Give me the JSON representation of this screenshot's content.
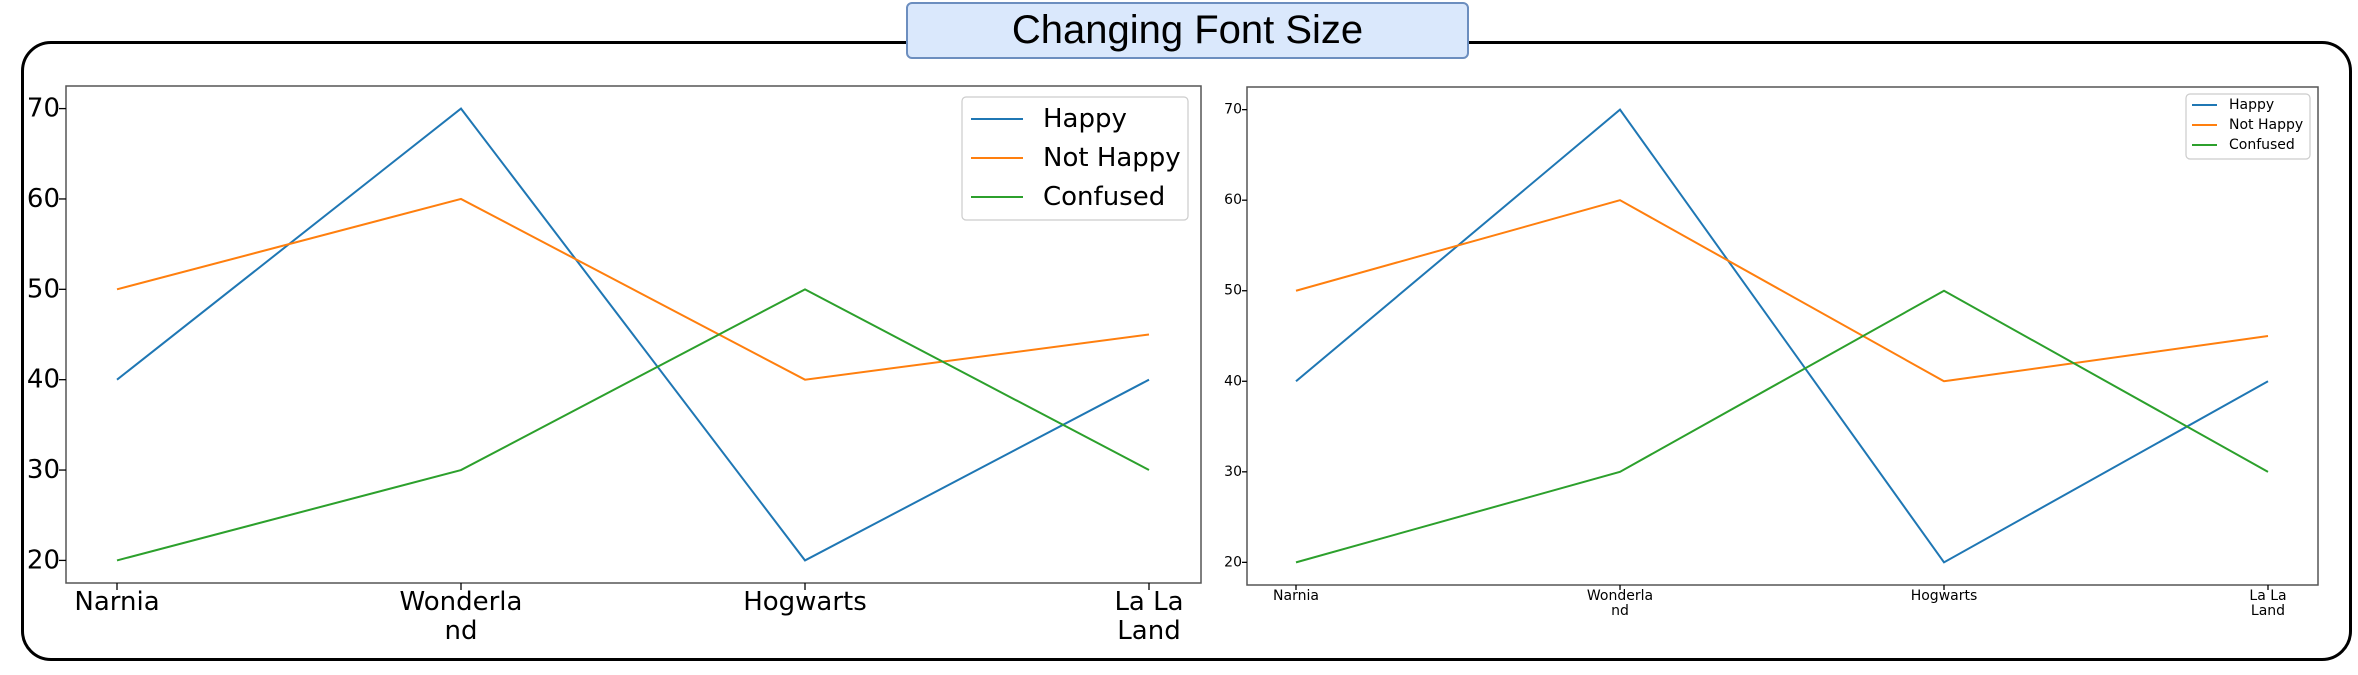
{
  "title": "Changing Font Size",
  "colors": {
    "Happy": "#1f77b4",
    "Not Happy": "#ff7f0e",
    "Confused": "#2ca02c"
  },
  "chart_data": [
    {
      "type": "line",
      "categories": [
        "Narnia",
        "Wonderland",
        "Hogwarts",
        "La La Land"
      ],
      "category_labels": [
        [
          "Narnia"
        ],
        [
          "Wonderla",
          "nd"
        ],
        [
          "Hogwarts"
        ],
        [
          "La La",
          "Land"
        ]
      ],
      "series": [
        {
          "name": "Happy",
          "values": [
            40,
            70,
            20,
            40
          ]
        },
        {
          "name": "Not Happy",
          "values": [
            50,
            60,
            40,
            45
          ]
        },
        {
          "name": "Confused",
          "values": [
            20,
            30,
            50,
            30
          ]
        }
      ],
      "yticks": [
        20,
        30,
        40,
        50,
        60,
        70
      ],
      "ylim": [
        17.5,
        72.5
      ],
      "legend": "top-right",
      "grid": false
    },
    {
      "type": "line",
      "categories": [
        "Narnia",
        "Wonderland",
        "Hogwarts",
        "La La Land"
      ],
      "category_labels": [
        [
          "Narnia"
        ],
        [
          "Wonderla",
          "nd"
        ],
        [
          "Hogwarts"
        ],
        [
          "La La",
          "Land"
        ]
      ],
      "series": [
        {
          "name": "Happy",
          "values": [
            40,
            70,
            20,
            40
          ]
        },
        {
          "name": "Not Happy",
          "values": [
            50,
            60,
            40,
            45
          ]
        },
        {
          "name": "Confused",
          "values": [
            20,
            30,
            50,
            30
          ]
        }
      ],
      "yticks": [
        20,
        30,
        40,
        50,
        60,
        70
      ],
      "ylim": [
        17.5,
        72.5
      ],
      "legend": "top-right",
      "grid": false
    }
  ]
}
